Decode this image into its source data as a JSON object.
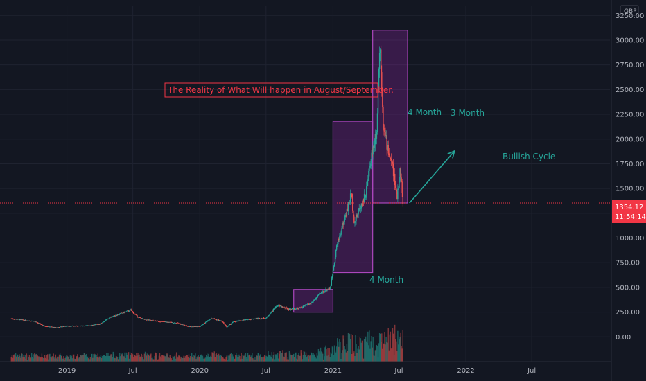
{
  "chart_data": {
    "type": "candlestick",
    "currency": "GBP",
    "title": "The Reality of What Will happen in August/September.",
    "y_ticks": [
      0,
      250,
      500,
      750,
      1000,
      1250,
      1500,
      1750,
      2000,
      2250,
      2500,
      2750,
      3000,
      3250
    ],
    "y_tick_labels": [
      "0.00",
      "250.00",
      "500.00",
      "750.00",
      "1000.00",
      "1250.00",
      "1500.00",
      "1750.00",
      "2000.00",
      "2250.00",
      "2500.00",
      "2750.00",
      "3000.00",
      "3250.00"
    ],
    "ylim": [
      -250,
      3350
    ],
    "x_ticks": [
      {
        "label": "2019",
        "date": "2019-01-01"
      },
      {
        "label": "Jul",
        "date": "2019-07-01"
      },
      {
        "label": "2020",
        "date": "2020-01-01"
      },
      {
        "label": "Jul",
        "date": "2020-07-01"
      },
      {
        "label": "2021",
        "date": "2021-01-01"
      },
      {
        "label": "Jul",
        "date": "2021-07-01"
      },
      {
        "label": "2022",
        "date": "2022-01-01"
      },
      {
        "label": "Jul",
        "date": "2022-07-01"
      }
    ],
    "xlim": [
      "2018-07-01",
      "2023-02-01"
    ],
    "price_series": [
      [
        "2018-08-01",
        185
      ],
      [
        "2018-09-01",
        170
      ],
      [
        "2018-10-01",
        160
      ],
      [
        "2018-11-01",
        110
      ],
      [
        "2018-12-01",
        95
      ],
      [
        "2019-01-01",
        110
      ],
      [
        "2019-02-01",
        110
      ],
      [
        "2019-03-01",
        115
      ],
      [
        "2019-04-01",
        130
      ],
      [
        "2019-05-01",
        200
      ],
      [
        "2019-06-01",
        240
      ],
      [
        "2019-06-25",
        270
      ],
      [
        "2019-07-15",
        200
      ],
      [
        "2019-08-01",
        175
      ],
      [
        "2019-09-01",
        160
      ],
      [
        "2019-10-01",
        150
      ],
      [
        "2019-11-01",
        140
      ],
      [
        "2019-12-01",
        105
      ],
      [
        "2020-01-01",
        105
      ],
      [
        "2020-02-01",
        190
      ],
      [
        "2020-03-01",
        160
      ],
      [
        "2020-03-15",
        100
      ],
      [
        "2020-04-01",
        150
      ],
      [
        "2020-05-01",
        170
      ],
      [
        "2020-06-01",
        185
      ],
      [
        "2020-07-01",
        190
      ],
      [
        "2020-08-01",
        320
      ],
      [
        "2020-09-01",
        280
      ],
      [
        "2020-10-01",
        290
      ],
      [
        "2020-11-01",
        340
      ],
      [
        "2020-12-01",
        450
      ],
      [
        "2020-12-25",
        500
      ],
      [
        "2021-01-10",
        900
      ],
      [
        "2021-01-25",
        1100
      ],
      [
        "2021-02-10",
        1300
      ],
      [
        "2021-02-20",
        1450
      ],
      [
        "2021-03-01",
        1150
      ],
      [
        "2021-03-15",
        1300
      ],
      [
        "2021-04-01",
        1450
      ],
      [
        "2021-04-15",
        1800
      ],
      [
        "2021-05-01",
        2100
      ],
      [
        "2021-05-10",
        3000
      ],
      [
        "2021-05-20",
        2100
      ],
      [
        "2021-06-01",
        1900
      ],
      [
        "2021-06-15",
        1700
      ],
      [
        "2021-06-25",
        1400
      ],
      [
        "2021-07-05",
        1700
      ],
      [
        "2021-07-12",
        1354
      ]
    ],
    "last_price_label": "1354.12",
    "countdown_label": "11:54:14",
    "last_price": 1354.12,
    "annotations": {
      "label_4_month_small": "4 Month",
      "label_4_month_large": "4 Month",
      "label_3_month": "3 Month",
      "label_bullish": "Bullish Cycle"
    },
    "boxes": [
      {
        "x0": "2020-09-15",
        "x1": "2021-01-01",
        "y0": 250,
        "y1": 480
      },
      {
        "x0": "2021-01-01",
        "x1": "2021-04-20",
        "y0": 650,
        "y1": 2180
      },
      {
        "x0": "2021-04-20",
        "x1": "2021-07-25",
        "y0": 1354,
        "y1": 3100
      }
    ],
    "arrow": {
      "x0": "2021-07-30",
      "y0": 1354,
      "x1": "2021-12-01",
      "y1": 1880
    },
    "colors": {
      "background": "#131722",
      "up": "#26a69a",
      "down": "#ef5350",
      "box_fill": "#9c27b0",
      "box_stroke": "#ab47bc",
      "annotation": "#26a69a",
      "title_text": "#f23645",
      "price_line": "#f23645"
    }
  }
}
